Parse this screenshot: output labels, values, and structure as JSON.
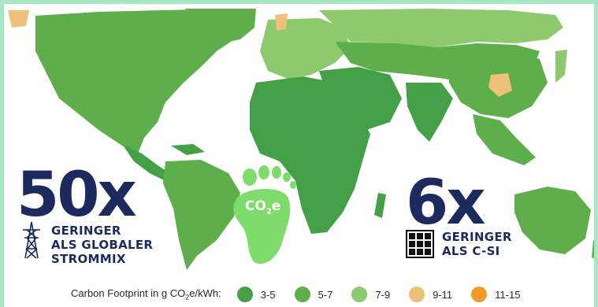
{
  "left_stat": {
    "number": "50x",
    "line1": "GERINGER",
    "line2": "ALS GLOBALER",
    "line3": "STROMMIX"
  },
  "right_stat": {
    "number": "6x",
    "line1": "GERINGER",
    "line2": "ALS C-SI"
  },
  "footprint_label": {
    "main": "CO",
    "sub": "2",
    "tail": "e"
  },
  "legend": {
    "title_pre": "Carbon Footprint in g CO",
    "title_sub": "2",
    "title_post": "e/kWh:",
    "items": [
      {
        "label": "3-5",
        "color": "#43a047"
      },
      {
        "label": "5-7",
        "color": "#5fae4c"
      },
      {
        "label": "7-9",
        "color": "#8ec96d"
      },
      {
        "label": "9-11",
        "color": "#eec17b"
      },
      {
        "label": "11-15",
        "color": "#ef9a29"
      }
    ]
  },
  "icons": [
    "transmission-tower-icon",
    "solar-panel-icon",
    "footprint-icon"
  ]
}
